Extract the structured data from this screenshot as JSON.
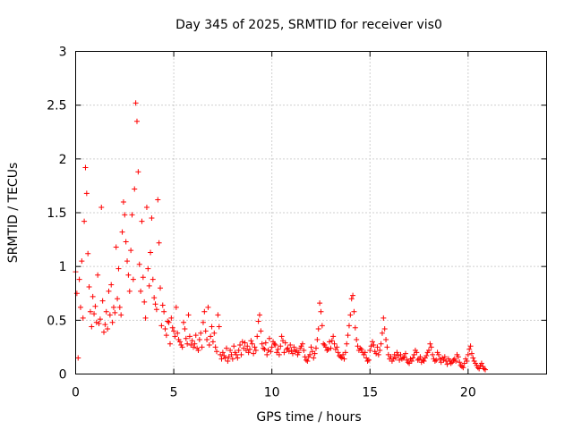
{
  "chart_data": {
    "type": "scatter",
    "title": "Day 345 of 2025, SRMTID for receiver vis0",
    "xlabel": "GPS time / hours",
    "ylabel": "SRMTID / TECUs",
    "xlim": [
      0,
      24
    ],
    "ylim": [
      0,
      3
    ],
    "xticks": [
      0,
      5,
      10,
      15,
      20
    ],
    "yticks": [
      0,
      0.5,
      1,
      1.5,
      2,
      2.5,
      3
    ],
    "xtick_labels": [
      "0",
      "5",
      "10",
      "15",
      "20"
    ],
    "ytick_labels": [
      "0",
      "0.5",
      "1",
      "1.5",
      "2",
      "2.5",
      "3"
    ],
    "grid": true,
    "marker": "+",
    "series": [
      {
        "name": "vis0",
        "color": "#ff0000",
        "x_start": 0.0,
        "x_step": 0.0625,
        "y": [
          0.95,
          0.75,
          0.15,
          0.88,
          0.62,
          1.05,
          0.52,
          1.42,
          1.92,
          1.68,
          1.12,
          0.81,
          0.58,
          0.44,
          0.72,
          0.56,
          0.63,
          0.48,
          0.92,
          0.47,
          0.51,
          1.55,
          0.68,
          0.39,
          0.46,
          0.58,
          0.42,
          0.77,
          0.55,
          0.83,
          0.48,
          0.62,
          0.57,
          1.18,
          0.7,
          0.98,
          0.62,
          0.55,
          1.32,
          1.6,
          1.48,
          1.23,
          1.05,
          0.92,
          0.77,
          1.15,
          1.48,
          0.88,
          1.72,
          2.52,
          2.35,
          1.88,
          1.02,
          0.77,
          1.42,
          0.9,
          0.67,
          0.52,
          1.55,
          0.98,
          0.82,
          1.13,
          1.45,
          0.88,
          0.71,
          0.65,
          0.6,
          1.62,
          1.22,
          0.8,
          0.45,
          0.64,
          0.58,
          0.42,
          0.36,
          0.49,
          0.48,
          0.28,
          0.52,
          0.43,
          0.4,
          0.35,
          0.62,
          0.38,
          0.32,
          0.3,
          0.27,
          0.25,
          0.48,
          0.42,
          0.33,
          0.28,
          0.55,
          0.35,
          0.27,
          0.31,
          0.25,
          0.28,
          0.36,
          0.24,
          0.22,
          0.32,
          0.38,
          0.25,
          0.48,
          0.58,
          0.4,
          0.32,
          0.62,
          0.27,
          0.35,
          0.44,
          0.3,
          0.38,
          0.25,
          0.21,
          0.55,
          0.44,
          0.18,
          0.14,
          0.2,
          0.17,
          0.15,
          0.24,
          0.12,
          0.16,
          0.22,
          0.18,
          0.14,
          0.26,
          0.2,
          0.18,
          0.15,
          0.22,
          0.27,
          0.18,
          0.3,
          0.24,
          0.29,
          0.22,
          0.26,
          0.2,
          0.23,
          0.31,
          0.28,
          0.19,
          0.25,
          0.22,
          0.35,
          0.49,
          0.55,
          0.4,
          0.28,
          0.24,
          0.23,
          0.29,
          0.18,
          0.22,
          0.33,
          0.21,
          0.25,
          0.3,
          0.28,
          0.27,
          0.2,
          0.23,
          0.18,
          0.26,
          0.35,
          0.31,
          0.2,
          0.29,
          0.23,
          0.24,
          0.21,
          0.27,
          0.22,
          0.19,
          0.25,
          0.21,
          0.22,
          0.18,
          0.2,
          0.24,
          0.26,
          0.28,
          0.22,
          0.16,
          0.13,
          0.12,
          0.16,
          0.18,
          0.25,
          0.21,
          0.15,
          0.19,
          0.24,
          0.32,
          0.42,
          0.66,
          0.58,
          0.45,
          0.28,
          0.27,
          0.25,
          0.22,
          0.23,
          0.3,
          0.24,
          0.31,
          0.35,
          0.28,
          0.23,
          0.25,
          0.2,
          0.17,
          0.16,
          0.15,
          0.18,
          0.14,
          0.2,
          0.28,
          0.36,
          0.45,
          0.55,
          0.7,
          0.73,
          0.58,
          0.43,
          0.32,
          0.26,
          0.22,
          0.24,
          0.23,
          0.2,
          0.18,
          0.2,
          0.15,
          0.12,
          0.13,
          0.22,
          0.26,
          0.3,
          0.27,
          0.21,
          0.19,
          0.25,
          0.18,
          0.22,
          0.28,
          0.38,
          0.52,
          0.42,
          0.32,
          0.25,
          0.18,
          0.14,
          0.16,
          0.12,
          0.14,
          0.18,
          0.15,
          0.2,
          0.17,
          0.13,
          0.18,
          0.14,
          0.15,
          0.16,
          0.19,
          0.13,
          0.11,
          0.1,
          0.14,
          0.12,
          0.15,
          0.18,
          0.22,
          0.2,
          0.13,
          0.14,
          0.16,
          0.11,
          0.13,
          0.12,
          0.15,
          0.17,
          0.2,
          0.22,
          0.28,
          0.25,
          0.18,
          0.14,
          0.12,
          0.13,
          0.2,
          0.18,
          0.14,
          0.11,
          0.15,
          0.13,
          0.16,
          0.12,
          0.09,
          0.14,
          0.12,
          0.1,
          0.11,
          0.13,
          0.14,
          0.12,
          0.18,
          0.16,
          0.11,
          0.08,
          0.07,
          0.06,
          0.1,
          0.14,
          0.12,
          0.18,
          0.23,
          0.26,
          0.19,
          0.15,
          0.12,
          0.1,
          0.08,
          0.06,
          0.05,
          0.08,
          0.1,
          0.07,
          0.05,
          0.04
        ]
      }
    ]
  }
}
